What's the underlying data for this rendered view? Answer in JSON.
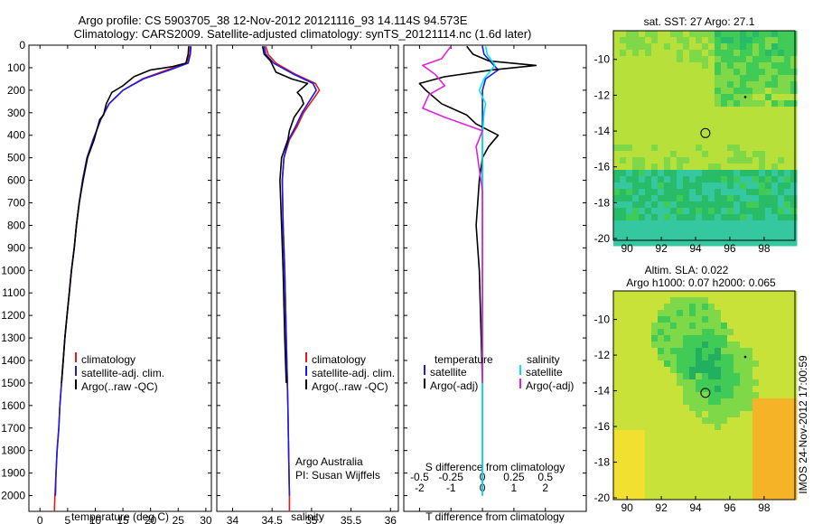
{
  "title": {
    "line1": "Argo profile: CS 5903705_38 12-Nov-2012 20121116_93 14.114S 94.573E",
    "line2": "Climatology: CARS2009. Satellite-adjusted climatology: synTS_20121114.nc (1.6d later)"
  },
  "colors": {
    "red": "#e41a1c",
    "blue": "#1a1ae6",
    "black": "#000000",
    "cyan": "#00e5ee",
    "magenta": "#e020e0"
  },
  "chart_data": [
    {
      "type": "line",
      "id": "temperature",
      "xlabel": "temperature (deg C)",
      "xlim": [
        -2,
        31
      ],
      "ylim": [
        2070,
        0
      ],
      "xticks": [
        0,
        5,
        10,
        15,
        20,
        25,
        30
      ],
      "yticks": [
        0,
        100,
        200,
        300,
        400,
        500,
        600,
        700,
        800,
        900,
        1000,
        1100,
        1200,
        1300,
        1400,
        1500,
        1600,
        1700,
        1800,
        1900,
        2000
      ],
      "legend": [
        "climatology",
        "satellite-adj. clim.",
        "Argo(..raw -QC)"
      ],
      "series": [
        {
          "name": "climatology",
          "color": "red",
          "points": [
            [
              27.2,
              5
            ],
            [
              27.1,
              40
            ],
            [
              26.5,
              80
            ],
            [
              23,
              110
            ],
            [
              18.5,
              150
            ],
            [
              15,
              200
            ],
            [
              12.5,
              260
            ],
            [
              11,
              330
            ],
            [
              9.6,
              420
            ],
            [
              8.5,
              500
            ],
            [
              7.7,
              600
            ],
            [
              7.1,
              700
            ],
            [
              6.6,
              800
            ],
            [
              6.2,
              900
            ],
            [
              5.7,
              1000
            ],
            [
              5.3,
              1100
            ],
            [
              4.9,
              1200
            ],
            [
              4.5,
              1300
            ],
            [
              4.2,
              1400
            ],
            [
              3.9,
              1500
            ],
            [
              3.6,
              1600
            ],
            [
              3.4,
              1700
            ],
            [
              3.1,
              1800
            ],
            [
              2.9,
              1900
            ],
            [
              2.7,
              2000
            ],
            [
              2.6,
              2070
            ]
          ]
        },
        {
          "name": "satellite",
          "color": "blue",
          "points": [
            [
              27.3,
              5
            ],
            [
              27.2,
              40
            ],
            [
              26.8,
              80
            ],
            [
              23.5,
              110
            ],
            [
              18.7,
              150
            ],
            [
              15,
              200
            ],
            [
              12.5,
              260
            ],
            [
              11,
              330
            ],
            [
              9.6,
              420
            ],
            [
              8.5,
              500
            ],
            [
              7.7,
              600
            ],
            [
              7.1,
              700
            ],
            [
              6.6,
              800
            ],
            [
              6.2,
              900
            ],
            [
              5.7,
              1000
            ],
            [
              5.3,
              1100
            ],
            [
              4.9,
              1200
            ],
            [
              4.5,
              1300
            ],
            [
              4.2,
              1400
            ],
            [
              3.9,
              1500
            ],
            [
              3.6,
              1600
            ],
            [
              3.4,
              1700
            ],
            [
              3.1,
              1800
            ],
            [
              2.9,
              1900
            ],
            [
              2.8,
              2000
            ]
          ]
        },
        {
          "name": "argo",
          "color": "black",
          "points": [
            [
              26.9,
              5
            ],
            [
              26.8,
              40
            ],
            [
              26.4,
              80
            ],
            [
              24,
              95
            ],
            [
              20,
              110
            ],
            [
              17,
              140
            ],
            [
              15,
              180
            ],
            [
              13,
              210
            ],
            [
              12,
              260
            ],
            [
              11.5,
              310
            ],
            [
              10.8,
              330
            ],
            [
              9.8,
              420
            ],
            [
              8.6,
              500
            ],
            [
              7.8,
              600
            ],
            [
              7.1,
              700
            ],
            [
              6.6,
              800
            ],
            [
              6.2,
              900
            ],
            [
              5.7,
              1000
            ],
            [
              5.3,
              1100
            ],
            [
              4.9,
              1200
            ],
            [
              4.5,
              1300
            ],
            [
              4.2,
              1400
            ],
            [
              3.9,
              1500
            ]
          ]
        }
      ]
    },
    {
      "type": "line",
      "id": "salinity",
      "xlabel": "salinity",
      "xlim": [
        33.8,
        36.1
      ],
      "ylim": [
        2070,
        0
      ],
      "xticks": [
        34,
        34.5,
        35,
        35.5,
        36
      ],
      "legend": [
        "climatology",
        "satellite-adj. clim.",
        "Argo(..raw -QC)"
      ],
      "annotation": [
        "Argo Australia",
        "PI: Susan Wijffels"
      ],
      "series": [
        {
          "name": "climatology",
          "color": "red",
          "points": [
            [
              34.42,
              5
            ],
            [
              34.45,
              40
            ],
            [
              34.55,
              80
            ],
            [
              34.8,
              130
            ],
            [
              35.05,
              170
            ],
            [
              35.1,
              200
            ],
            [
              35,
              250
            ],
            [
              34.9,
              300
            ],
            [
              34.82,
              360
            ],
            [
              34.72,
              420
            ],
            [
              34.65,
              500
            ],
            [
              34.63,
              600
            ],
            [
              34.64,
              800
            ],
            [
              34.66,
              1000
            ],
            [
              34.68,
              1300
            ],
            [
              34.7,
              1600
            ],
            [
              34.71,
              1800
            ],
            [
              34.72,
              2000
            ],
            [
              34.72,
              2070
            ]
          ]
        },
        {
          "name": "satellite",
          "color": "blue",
          "points": [
            [
              34.4,
              5
            ],
            [
              34.42,
              40
            ],
            [
              34.52,
              80
            ],
            [
              34.78,
              130
            ],
            [
              35.02,
              170
            ],
            [
              35.06,
              200
            ],
            [
              34.97,
              250
            ],
            [
              34.88,
              300
            ],
            [
              34.8,
              360
            ],
            [
              34.71,
              420
            ],
            [
              34.65,
              500
            ],
            [
              34.63,
              600
            ],
            [
              34.64,
              800
            ],
            [
              34.66,
              1000
            ],
            [
              34.68,
              1300
            ],
            [
              34.7,
              1600
            ],
            [
              34.71,
              1800
            ],
            [
              34.72,
              2000
            ]
          ]
        },
        {
          "name": "argo",
          "color": "black",
          "points": [
            [
              34.38,
              5
            ],
            [
              34.4,
              40
            ],
            [
              34.48,
              70
            ],
            [
              34.55,
              120
            ],
            [
              34.75,
              150
            ],
            [
              34.95,
              170
            ],
            [
              34.82,
              210
            ],
            [
              34.87,
              230
            ],
            [
              34.9,
              260
            ],
            [
              34.78,
              320
            ],
            [
              34.72,
              380
            ],
            [
              34.7,
              420
            ],
            [
              34.62,
              500
            ],
            [
              34.6,
              600
            ],
            [
              34.62,
              800
            ],
            [
              34.64,
              1000
            ],
            [
              34.66,
              1300
            ],
            [
              34.68,
              1500
            ]
          ]
        }
      ]
    },
    {
      "type": "line",
      "id": "difference",
      "xlabel": "T difference from climatology",
      "xlabel2": "S difference from climatology",
      "xlim": [
        -2.5,
        3.3
      ],
      "ylim": [
        2070,
        0
      ],
      "xticks": [
        -2,
        -1,
        0,
        1,
        2
      ],
      "xticks2": [
        "-0.5",
        "-0.25",
        "0",
        "0.25",
        "0.5"
      ],
      "legend_left_title": "temperature",
      "legend_right_title": "salinity",
      "legend": [
        "satellite",
        "Argo(-adj)",
        "satellite",
        "Argo(-adj)"
      ],
      "series": [
        {
          "name": "T satellite",
          "color": "blue",
          "points": [
            [
              0,
              5
            ],
            [
              0.05,
              40
            ],
            [
              0.3,
              80
            ],
            [
              0.5,
              110
            ],
            [
              0.1,
              150
            ],
            [
              0,
              200
            ],
            [
              0,
              300
            ],
            [
              0,
              400
            ],
            [
              0,
              600
            ],
            [
              0,
              1000
            ],
            [
              0,
              2000
            ]
          ]
        },
        {
          "name": "T argo",
          "color": "black",
          "points": [
            [
              -0.5,
              5
            ],
            [
              -0.3,
              40
            ],
            [
              0.2,
              70
            ],
            [
              1.7,
              90
            ],
            [
              0.3,
              110
            ],
            [
              -1.2,
              140
            ],
            [
              -2,
              170
            ],
            [
              -1.8,
              200
            ],
            [
              -1.3,
              260
            ],
            [
              -0.5,
              310
            ],
            [
              -0.2,
              350
            ],
            [
              0.5,
              400
            ],
            [
              0.2,
              450
            ],
            [
              0,
              500
            ],
            [
              -0.1,
              600
            ],
            [
              -0.2,
              800
            ],
            [
              -0.1,
              1000
            ],
            [
              0,
              1500
            ]
          ]
        },
        {
          "name": "S satellite",
          "color": "cyan",
          "points": [
            [
              0.1,
              5
            ],
            [
              0.15,
              40
            ],
            [
              0.4,
              90
            ],
            [
              0.05,
              150
            ],
            [
              -0.1,
              200
            ],
            [
              0.1,
              260
            ],
            [
              0.05,
              300
            ],
            [
              0,
              400
            ],
            [
              0,
              600
            ],
            [
              0,
              1000
            ],
            [
              0,
              2000
            ]
          ]
        },
        {
          "name": "S argo",
          "color": "magenta",
          "points": [
            [
              -1,
              5
            ],
            [
              -1.3,
              60
            ],
            [
              -1.9,
              90
            ],
            [
              -1.5,
              130
            ],
            [
              -1.2,
              180
            ],
            [
              -1.7,
              220
            ],
            [
              -1.9,
              280
            ],
            [
              -1.2,
              320
            ],
            [
              -0.6,
              350
            ],
            [
              0,
              380
            ],
            [
              -0.2,
              450
            ],
            [
              -0.1,
              550
            ],
            [
              0,
              650
            ],
            [
              0,
              1000
            ],
            [
              0,
              1500
            ]
          ]
        }
      ]
    }
  ],
  "maps": [
    {
      "id": "sst",
      "title": "sat. SST: 27 Argo: 27.1",
      "xticks": [
        "90",
        "92",
        "94",
        "96",
        "98"
      ],
      "yticks": [
        "-10",
        "-12",
        "-14",
        "-16",
        "-18",
        "-20"
      ],
      "marker": [
        94.573,
        -14.114
      ],
      "point": [
        96.9,
        -12.1
      ]
    },
    {
      "id": "sla",
      "title": "Altim. SLA: 0.022",
      "title2": "Argo h1000: 0.07 h2000: 0.065",
      "xticks": [
        "90",
        "92",
        "94",
        "96",
        "98"
      ],
      "yticks": [
        "-10",
        "-12",
        "-14",
        "-16",
        "-18",
        "-20"
      ],
      "marker": [
        94.573,
        -14.114
      ],
      "point": [
        96.9,
        -12.1
      ]
    }
  ],
  "stamp": "IMOS 24-Nov-2012 17:00:59"
}
